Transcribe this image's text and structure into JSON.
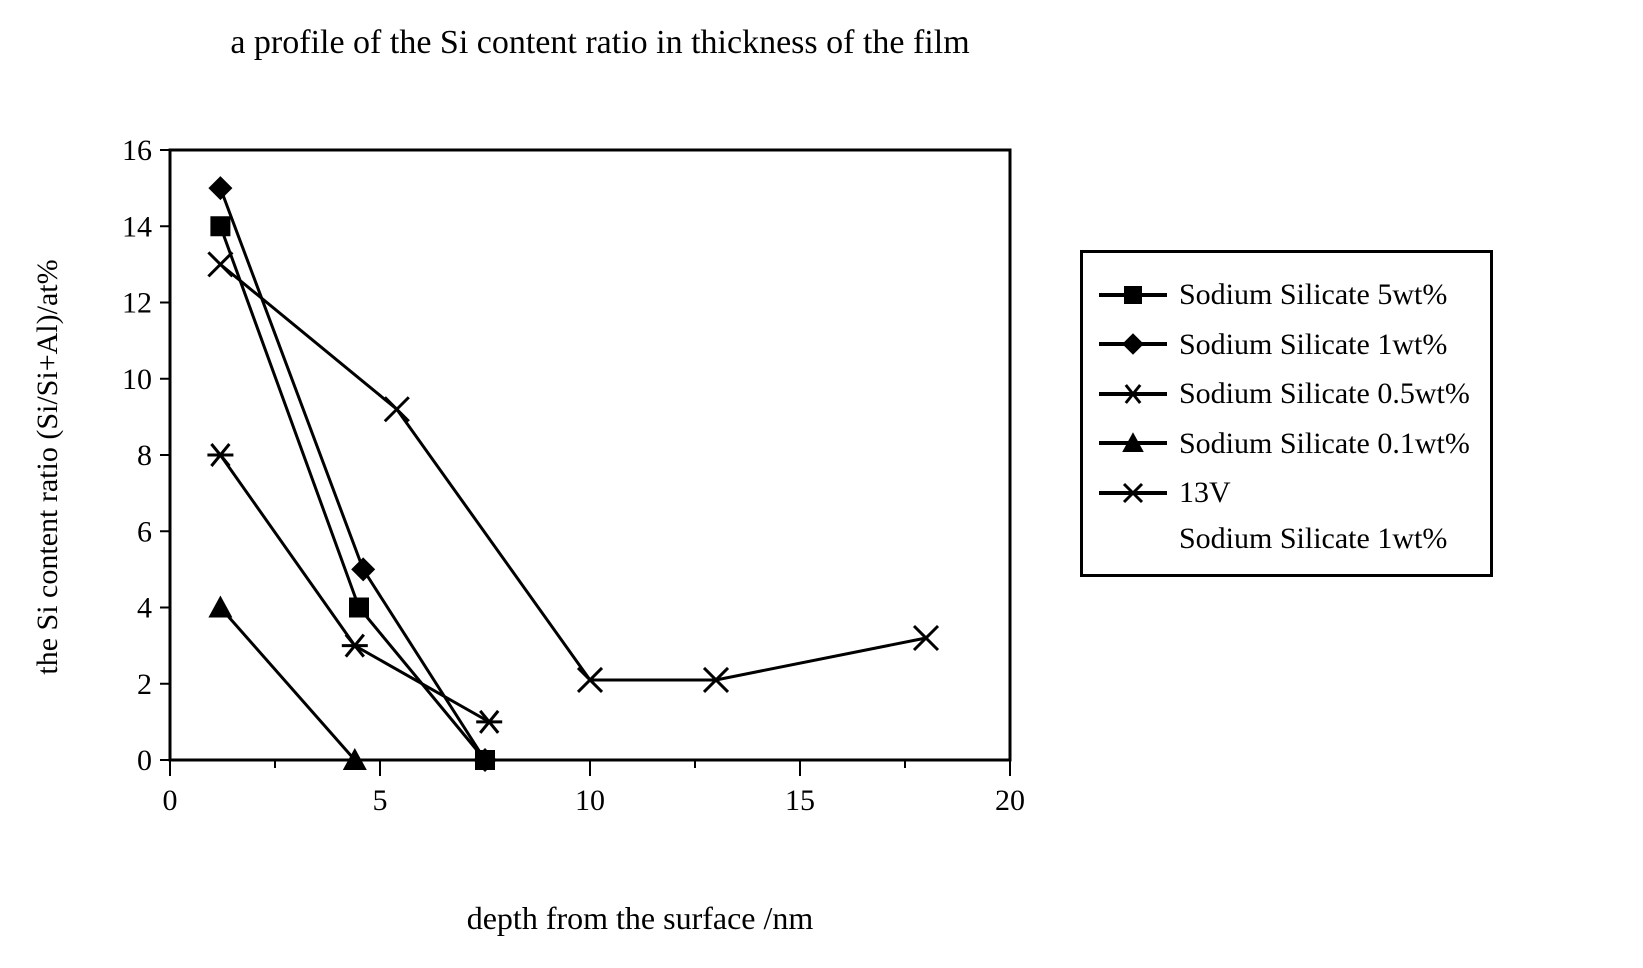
{
  "title": "a profile of the Si content ratio in thickness of the film",
  "xlabel": "depth from the surface /nm",
  "ylabel": "the Si content ratio (Si/Si+Al)/at%",
  "chart": {
    "type": "line",
    "xlim": [
      0,
      20
    ],
    "ylim": [
      0,
      16
    ],
    "xticks": [
      0,
      5,
      10,
      15,
      20
    ],
    "yticks": [
      0,
      2,
      4,
      6,
      8,
      10,
      12,
      14,
      16
    ],
    "background_color": "#ffffff",
    "axis_color": "#000000",
    "axis_width": 3,
    "tick_len_x_major": 16,
    "tick_len_y": 10,
    "tick_fontsize": 30,
    "line_width": 3,
    "marker_size": 10,
    "grid": false,
    "series": [
      {
        "key": "ss5",
        "label": "Sodium Silicate 5wt%",
        "color": "#000000",
        "marker": "square-filled",
        "points": [
          [
            1.2,
            14.0
          ],
          [
            4.5,
            4.0
          ],
          [
            7.5,
            0.0
          ]
        ]
      },
      {
        "key": "ss1",
        "label": "Sodium Silicate 1wt%",
        "color": "#000000",
        "marker": "diamond-filled",
        "points": [
          [
            1.2,
            15.0
          ],
          [
            4.6,
            5.0
          ],
          [
            7.5,
            0.0
          ]
        ]
      },
      {
        "key": "ss05",
        "label": "Sodium Silicate 0.5wt%",
        "color": "#000000",
        "marker": "asterisk",
        "points": [
          [
            1.2,
            8.0
          ],
          [
            4.4,
            3.0
          ],
          [
            7.6,
            1.0
          ]
        ]
      },
      {
        "key": "ss01",
        "label": "Sodium Silicate 0.1wt%",
        "color": "#000000",
        "marker": "triangle-filled",
        "points": [
          [
            1.2,
            4.0
          ],
          [
            4.4,
            0.0
          ]
        ]
      },
      {
        "key": "v13",
        "label": "13V",
        "label2": "Sodium Silicate 1wt%",
        "color": "#000000",
        "marker": "cross",
        "points": [
          [
            1.2,
            13.0
          ],
          [
            5.4,
            9.2
          ],
          [
            10.0,
            2.1
          ],
          [
            13.0,
            2.1
          ],
          [
            18.0,
            3.2
          ]
        ]
      }
    ]
  },
  "legend": [
    {
      "series": "ss5"
    },
    {
      "series": "ss1"
    },
    {
      "series": "ss05"
    },
    {
      "series": "ss01"
    },
    {
      "series": "v13"
    }
  ]
}
